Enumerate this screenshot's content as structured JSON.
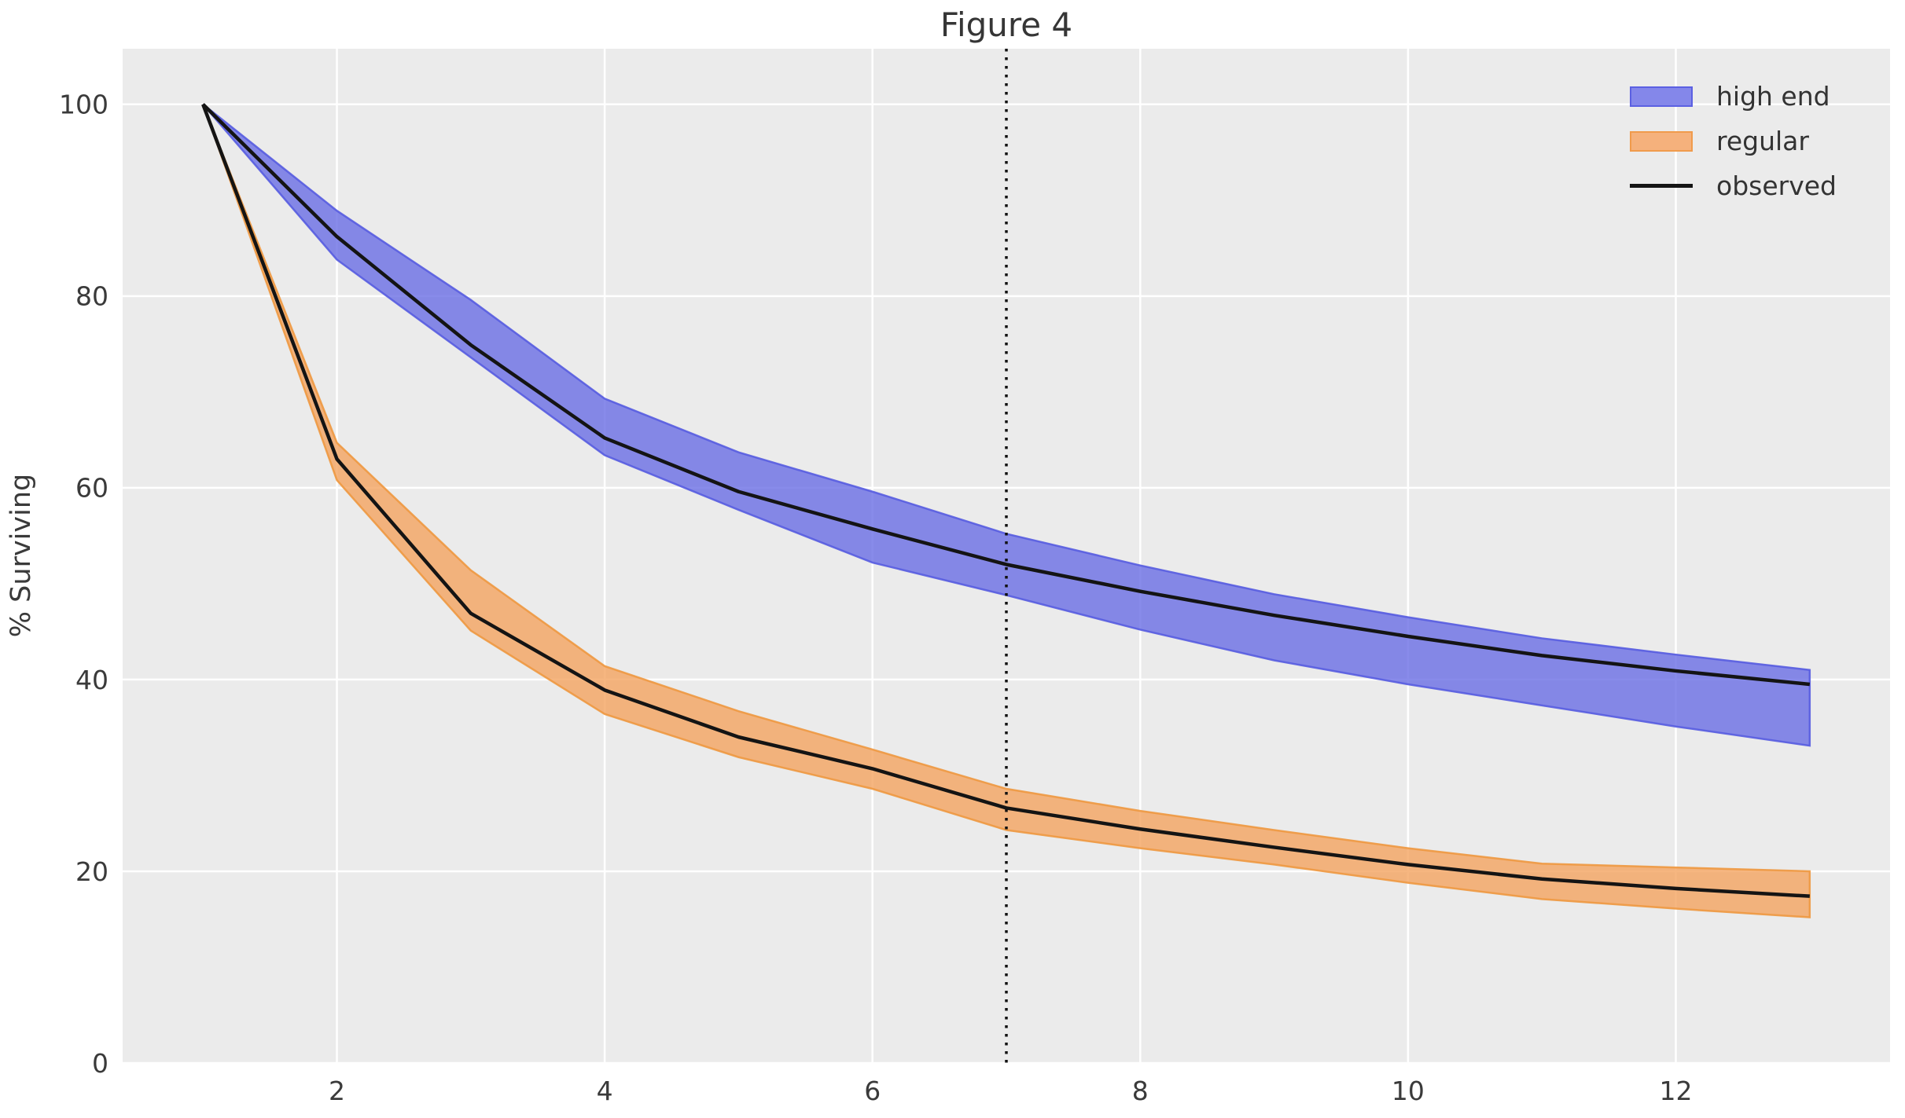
{
  "figure": {
    "title": "Figure 4",
    "ylabel": "% Surviving"
  },
  "legend": {
    "items": [
      {
        "label": "high end",
        "swatch": "band",
        "fill": "#8487EA",
        "edge": "#5B60E2"
      },
      {
        "label": "regular",
        "swatch": "band",
        "fill": "#F5B17C",
        "edge": "#F09B4C"
      },
      {
        "label": "observed",
        "swatch": "line",
        "color": "#141414"
      }
    ]
  },
  "chart_data": {
    "type": "line",
    "title": "Figure 4",
    "xlabel": "",
    "ylabel": "% Surviving",
    "xlim": [
      0.4,
      13.6
    ],
    "ylim": [
      0,
      105.8
    ],
    "xticks": [
      2,
      4,
      6,
      8,
      10,
      12
    ],
    "yticks": [
      0,
      20,
      40,
      60,
      80,
      100
    ],
    "grid": true,
    "background": "#ebebeb",
    "legend_position": "upper right",
    "vline": {
      "x": 7,
      "style": "dotted",
      "color": "#111111"
    },
    "x": [
      1,
      2,
      3,
      4,
      5,
      6,
      7,
      8,
      9,
      10,
      11,
      12,
      13
    ],
    "series": [
      {
        "id": "high-end-band",
        "name": "high end",
        "kind": "band",
        "upper": [
          100,
          88.9,
          79.6,
          69.3,
          63.7,
          59.6,
          55.2,
          51.9,
          48.9,
          46.5,
          44.3,
          42.6,
          41.0
        ],
        "lower": [
          100,
          83.8,
          73.6,
          63.4,
          57.7,
          52.2,
          48.8,
          45.2,
          42.0,
          39.5,
          37.3,
          35.1,
          33.1
        ],
        "fill": "#6A6EE5",
        "edge": "#565CE0",
        "opacity": 0.8
      },
      {
        "id": "regular-band",
        "name": "regular",
        "kind": "band",
        "upper": [
          100,
          64.7,
          51.4,
          41.4,
          36.7,
          32.7,
          28.6,
          26.3,
          24.3,
          22.4,
          20.8,
          20.4,
          20.0
        ],
        "lower": [
          100,
          60.8,
          45.1,
          36.4,
          31.9,
          28.6,
          24.3,
          22.4,
          20.7,
          18.8,
          17.1,
          16.1,
          15.2
        ],
        "fill": "#F4A460",
        "edge": "#EE9840",
        "opacity": 0.8
      },
      {
        "id": "observed-high-line",
        "name": "observed (high end)",
        "kind": "line",
        "values": [
          100,
          86.2,
          74.9,
          65.2,
          59.6,
          55.7,
          52.0,
          49.2,
          46.7,
          44.5,
          42.5,
          40.9,
          39.5
        ],
        "color": "#141414"
      },
      {
        "id": "observed-regular-line",
        "name": "observed (regular)",
        "kind": "line",
        "values": [
          100,
          63.0,
          46.9,
          38.9,
          34.0,
          30.7,
          26.6,
          24.4,
          22.5,
          20.7,
          19.2,
          18.2,
          17.4
        ],
        "color": "#141414"
      }
    ]
  }
}
